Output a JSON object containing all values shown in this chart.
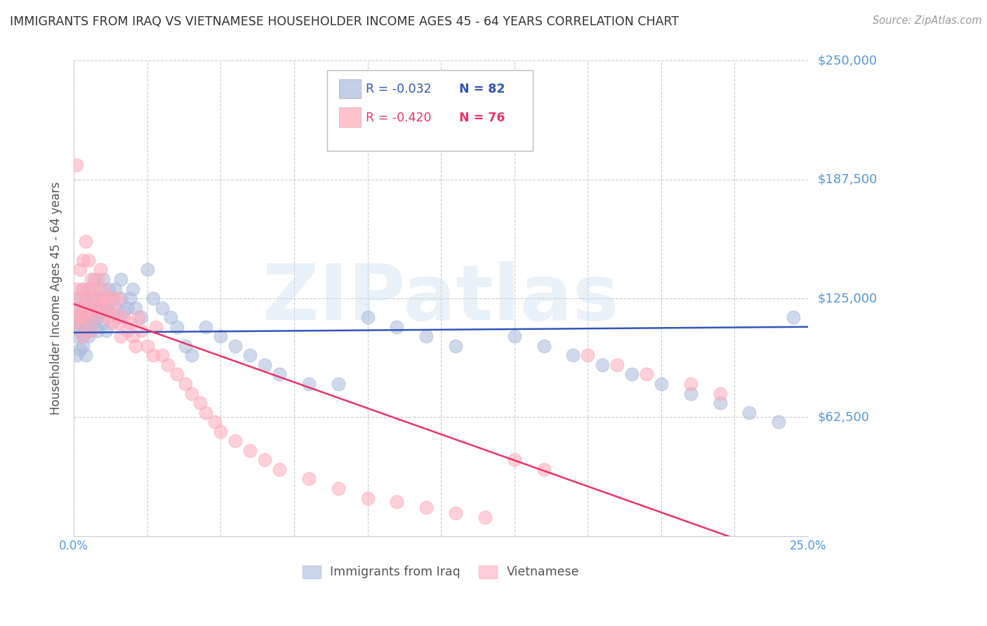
{
  "title": "IMMIGRANTS FROM IRAQ VS VIETNAMESE HOUSEHOLDER INCOME AGES 45 - 64 YEARS CORRELATION CHART",
  "source": "Source: ZipAtlas.com",
  "ylabel": "Householder Income Ages 45 - 64 years",
  "xlim": [
    0.0,
    0.25
  ],
  "ylim": [
    0,
    250000
  ],
  "yticks": [
    0,
    62500,
    125000,
    187500,
    250000
  ],
  "ytick_labels": [
    "",
    "$62,500",
    "$125,000",
    "$187,500",
    "$250,000"
  ],
  "blue_color": "#aabbdd",
  "pink_color": "#ffaabb",
  "blue_line_color": "#3355bb",
  "pink_line_color": "#ee3366",
  "grid_color": "#cccccc",
  "title_color": "#333333",
  "axis_label_color": "#555555",
  "right_label_color": "#5599dd",
  "watermark": "ZIPatlas",
  "legend_R_blue": "R = -0.032",
  "legend_N_blue": "N = 82",
  "legend_R_pink": "R = -0.420",
  "legend_N_pink": "N = 76",
  "legend_label_blue": "Immigrants from Iraq",
  "legend_label_pink": "Vietnamese",
  "blue_x": [
    0.001,
    0.001,
    0.001,
    0.001,
    0.001,
    0.002,
    0.002,
    0.002,
    0.002,
    0.003,
    0.003,
    0.003,
    0.003,
    0.004,
    0.004,
    0.004,
    0.004,
    0.005,
    0.005,
    0.005,
    0.005,
    0.006,
    0.006,
    0.006,
    0.006,
    0.007,
    0.007,
    0.007,
    0.008,
    0.008,
    0.008,
    0.009,
    0.009,
    0.01,
    0.01,
    0.01,
    0.011,
    0.011,
    0.012,
    0.012,
    0.013,
    0.014,
    0.014,
    0.015,
    0.016,
    0.016,
    0.017,
    0.018,
    0.019,
    0.02,
    0.021,
    0.023,
    0.025,
    0.027,
    0.03,
    0.033,
    0.035,
    0.038,
    0.04,
    0.045,
    0.05,
    0.055,
    0.06,
    0.065,
    0.07,
    0.08,
    0.09,
    0.1,
    0.11,
    0.12,
    0.13,
    0.15,
    0.16,
    0.17,
    0.18,
    0.19,
    0.2,
    0.21,
    0.22,
    0.23,
    0.24,
    0.245
  ],
  "blue_y": [
    105000,
    115000,
    95000,
    125000,
    110000,
    112000,
    108000,
    120000,
    98000,
    118000,
    105000,
    130000,
    100000,
    115000,
    125000,
    108000,
    95000,
    120000,
    110000,
    130000,
    105000,
    115000,
    125000,
    108000,
    118000,
    112000,
    125000,
    135000,
    108000,
    120000,
    115000,
    130000,
    118000,
    125000,
    112000,
    135000,
    120000,
    108000,
    130000,
    118000,
    125000,
    130000,
    120000,
    115000,
    125000,
    135000,
    118000,
    120000,
    125000,
    130000,
    120000,
    115000,
    140000,
    125000,
    120000,
    115000,
    110000,
    100000,
    95000,
    110000,
    105000,
    100000,
    95000,
    90000,
    85000,
    80000,
    80000,
    115000,
    110000,
    105000,
    100000,
    105000,
    100000,
    95000,
    90000,
    85000,
    80000,
    75000,
    70000,
    65000,
    60000,
    115000
  ],
  "pink_x": [
    0.001,
    0.001,
    0.001,
    0.001,
    0.002,
    0.002,
    0.002,
    0.002,
    0.003,
    0.003,
    0.003,
    0.003,
    0.004,
    0.004,
    0.004,
    0.005,
    0.005,
    0.005,
    0.006,
    0.006,
    0.006,
    0.007,
    0.007,
    0.007,
    0.008,
    0.008,
    0.009,
    0.009,
    0.01,
    0.01,
    0.011,
    0.011,
    0.012,
    0.013,
    0.013,
    0.014,
    0.015,
    0.015,
    0.016,
    0.017,
    0.018,
    0.019,
    0.02,
    0.021,
    0.022,
    0.023,
    0.025,
    0.027,
    0.028,
    0.03,
    0.032,
    0.035,
    0.038,
    0.04,
    0.043,
    0.045,
    0.048,
    0.05,
    0.055,
    0.06,
    0.065,
    0.07,
    0.08,
    0.09,
    0.1,
    0.11,
    0.12,
    0.13,
    0.14,
    0.15,
    0.16,
    0.175,
    0.185,
    0.195,
    0.21,
    0.22
  ],
  "pink_y": [
    130000,
    115000,
    120000,
    195000,
    125000,
    110000,
    140000,
    115000,
    120000,
    130000,
    105000,
    145000,
    125000,
    155000,
    115000,
    130000,
    118000,
    145000,
    120000,
    135000,
    108000,
    130000,
    115000,
    125000,
    120000,
    135000,
    125000,
    140000,
    120000,
    130000,
    115000,
    125000,
    118000,
    112000,
    125000,
    118000,
    112000,
    125000,
    105000,
    115000,
    108000,
    112000,
    105000,
    100000,
    115000,
    108000,
    100000,
    95000,
    110000,
    95000,
    90000,
    85000,
    80000,
    75000,
    70000,
    65000,
    60000,
    55000,
    50000,
    45000,
    40000,
    35000,
    30000,
    25000,
    20000,
    18000,
    15000,
    12000,
    10000,
    40000,
    35000,
    95000,
    90000,
    85000,
    80000,
    75000
  ]
}
